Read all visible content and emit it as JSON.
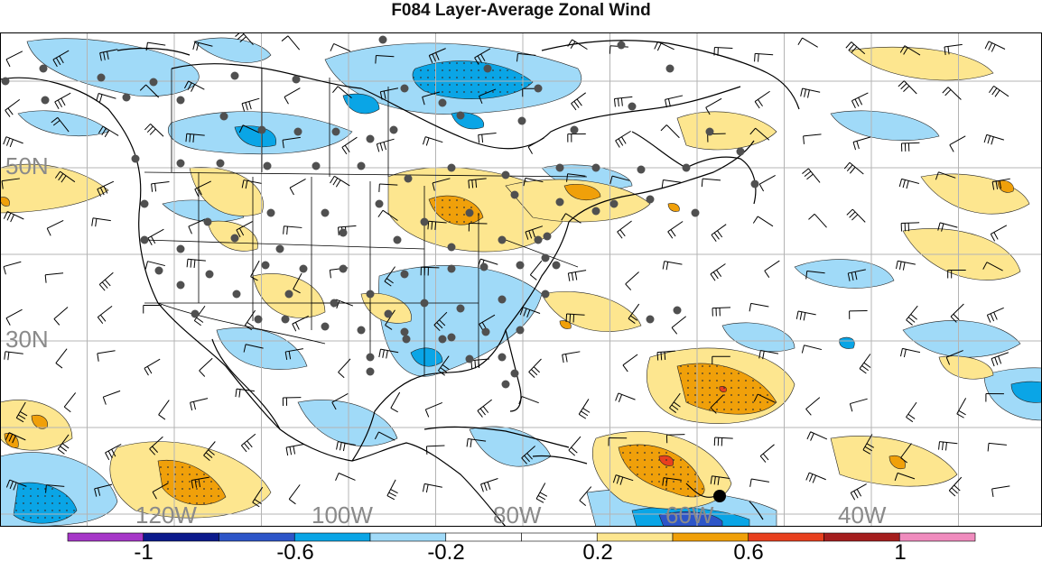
{
  "title": "F084 Layer-Average Zonal Wind",
  "lat_labels": [
    "50N",
    "30N"
  ],
  "lon_labels": [
    "120W",
    "100W",
    "80W",
    "60W",
    "40W"
  ],
  "colorbar": {
    "colors": [
      "#a637c8",
      "#0c1a8c",
      "#2d55c8",
      "#0aa5e6",
      "#a0daf8",
      "#ffffff",
      "#ffffff",
      "#fde68f",
      "#f0a00a",
      "#e8401e",
      "#a51e1e",
      "#f08cbe"
    ],
    "tick_labels": [
      "-1",
      "-0.6",
      "-0.2",
      "0.2",
      "0.6",
      "1"
    ]
  },
  "colors": {
    "contour_light_blue": "#a0daf8",
    "contour_blue": "#0aa5e6",
    "contour_dark_blue": "#2d55c8",
    "contour_yellow": "#fde68f",
    "contour_orange": "#f0a00a",
    "contour_red": "#e8401e",
    "station_dot": "#505050",
    "coastline": "#000000",
    "grid": "#b4b4b4",
    "axis_label": "#8a8a8a"
  }
}
